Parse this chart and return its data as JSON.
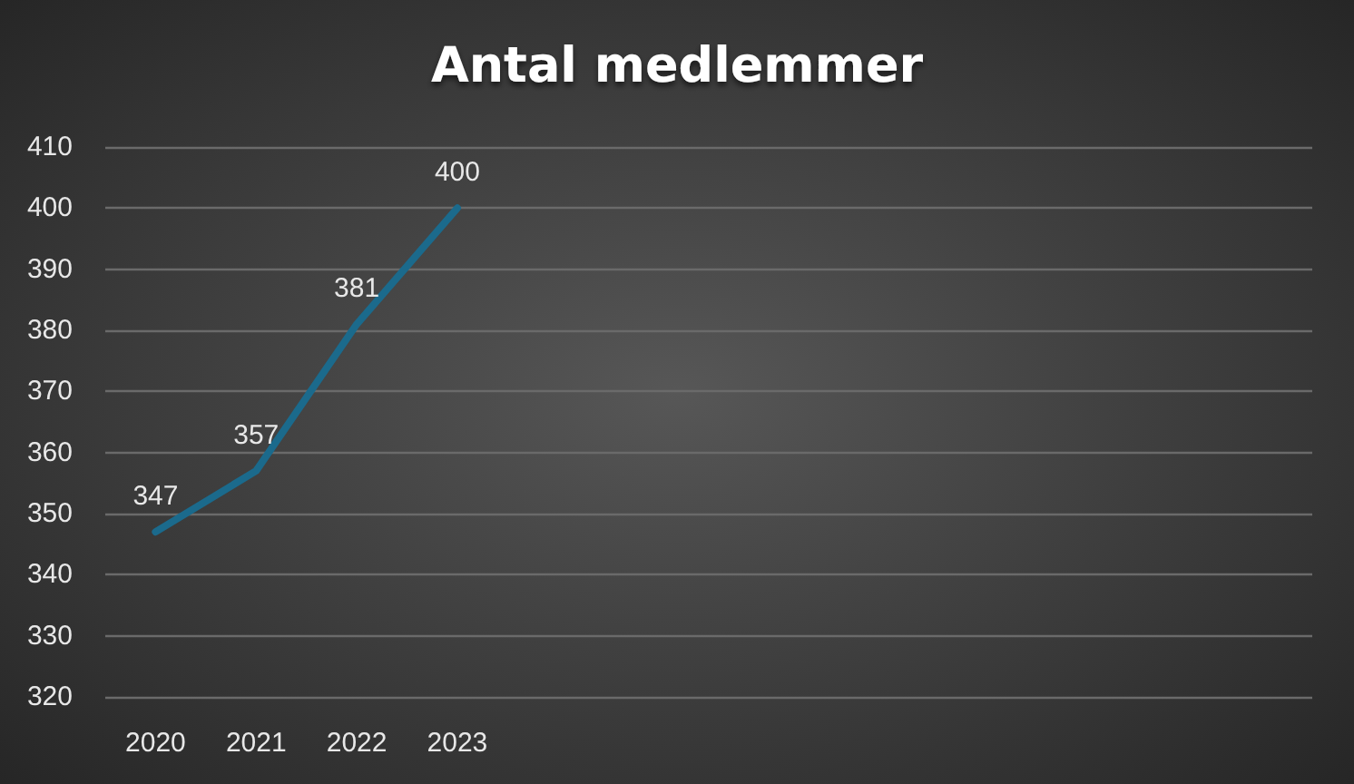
{
  "chart_data": {
    "type": "line",
    "title": "Antal medlemmer",
    "categories": [
      "2020",
      "2021",
      "2022",
      "2023",
      null,
      null,
      null,
      null,
      null,
      null,
      null,
      null
    ],
    "values": [
      347,
      357,
      381,
      400,
      null,
      null,
      null,
      null,
      null,
      null,
      null,
      null
    ],
    "color": "#1b6a8c",
    "ylim": [
      320,
      410
    ],
    "yticks": [
      320,
      330,
      340,
      350,
      360,
      370,
      380,
      390,
      400,
      410
    ],
    "grid": "y",
    "data_labels": true,
    "marker": "none",
    "line_style": "solid"
  }
}
